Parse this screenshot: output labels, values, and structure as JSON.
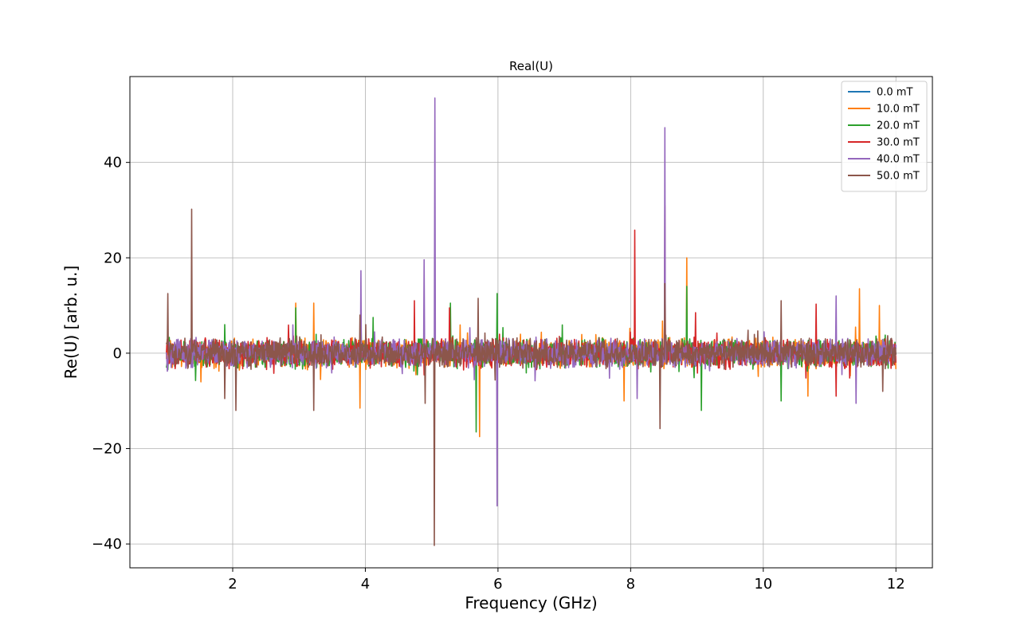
{
  "chart_data": {
    "type": "line",
    "title": "Real(U)",
    "xlabel": "Frequency (GHz)",
    "ylabel": "Re(U) [arb. u.]",
    "xlim": [
      0.45,
      12.55
    ],
    "ylim": [
      -45,
      58
    ],
    "xticks": [
      2,
      4,
      6,
      8,
      10,
      12
    ],
    "xtick_labels": [
      "2",
      "4",
      "6",
      "8",
      "10",
      "12"
    ],
    "yticks": [
      -40,
      -20,
      0,
      20,
      40
    ],
    "ytick_labels": [
      "−40",
      "−20",
      "0",
      "20",
      "40"
    ],
    "grid": true,
    "legend_position": "top-right",
    "x_range": [
      1.0,
      12.0
    ],
    "series": [
      {
        "name": "0.0 mT",
        "color": "#1f77b4",
        "noise_amplitude": 0.4,
        "spikes": [
          [
            1.0,
            0.5
          ]
        ]
      },
      {
        "name": "10.0 mT",
        "color": "#ff7f0e",
        "noise_amplitude": 2.5,
        "spikes": [
          [
            1.52,
            -6
          ],
          [
            2.95,
            10.5
          ],
          [
            3.22,
            10.5
          ],
          [
            3.92,
            -11.5
          ],
          [
            5.72,
            -17.5
          ],
          [
            7.9,
            -10
          ],
          [
            8.85,
            20
          ],
          [
            10.67,
            -9
          ],
          [
            11.45,
            13.5
          ],
          [
            11.75,
            10
          ]
        ]
      },
      {
        "name": "20.0 mT",
        "color": "#2ca02c",
        "noise_amplitude": 2.5,
        "spikes": [
          [
            1.88,
            6
          ],
          [
            2.95,
            9.5
          ],
          [
            3.93,
            7.5
          ],
          [
            4.12,
            7.5
          ],
          [
            5.28,
            10.5
          ],
          [
            5.67,
            -16.5
          ],
          [
            5.99,
            12.5
          ],
          [
            8.85,
            14
          ],
          [
            9.07,
            -12
          ],
          [
            10.27,
            -10
          ]
        ]
      },
      {
        "name": "30.0 mT",
        "color": "#d62728",
        "noise_amplitude": 2.5,
        "spikes": [
          [
            4.74,
            11
          ],
          [
            5.27,
            9.5
          ],
          [
            8.06,
            25.8
          ],
          [
            8.52,
            31
          ],
          [
            8.98,
            8.5
          ],
          [
            10.8,
            10.3
          ],
          [
            11.1,
            -9
          ],
          [
            12.0,
            -2
          ]
        ]
      },
      {
        "name": "40.0 mT",
        "color": "#9467bd",
        "noise_amplitude": 2.5,
        "spikes": [
          [
            3.93,
            17.3
          ],
          [
            4.89,
            19.6
          ],
          [
            5.05,
            53.5
          ],
          [
            5.99,
            -32
          ],
          [
            8.52,
            47.3
          ],
          [
            8.1,
            -9.5
          ],
          [
            11.1,
            12
          ],
          [
            11.4,
            -10.5
          ]
        ]
      },
      {
        "name": "50.0 mT",
        "color": "#8c564b",
        "noise_amplitude": 2.5,
        "spikes": [
          [
            1.02,
            12.5
          ],
          [
            1.38,
            30.2
          ],
          [
            1.88,
            -9.5
          ],
          [
            2.05,
            -12
          ],
          [
            3.22,
            -12
          ],
          [
            3.92,
            8
          ],
          [
            4.9,
            -10.5
          ],
          [
            5.04,
            -40.3
          ],
          [
            5.7,
            11.5
          ],
          [
            8.44,
            -15.8
          ],
          [
            8.52,
            14.6
          ],
          [
            10.27,
            11
          ],
          [
            11.8,
            -8
          ]
        ]
      }
    ]
  }
}
